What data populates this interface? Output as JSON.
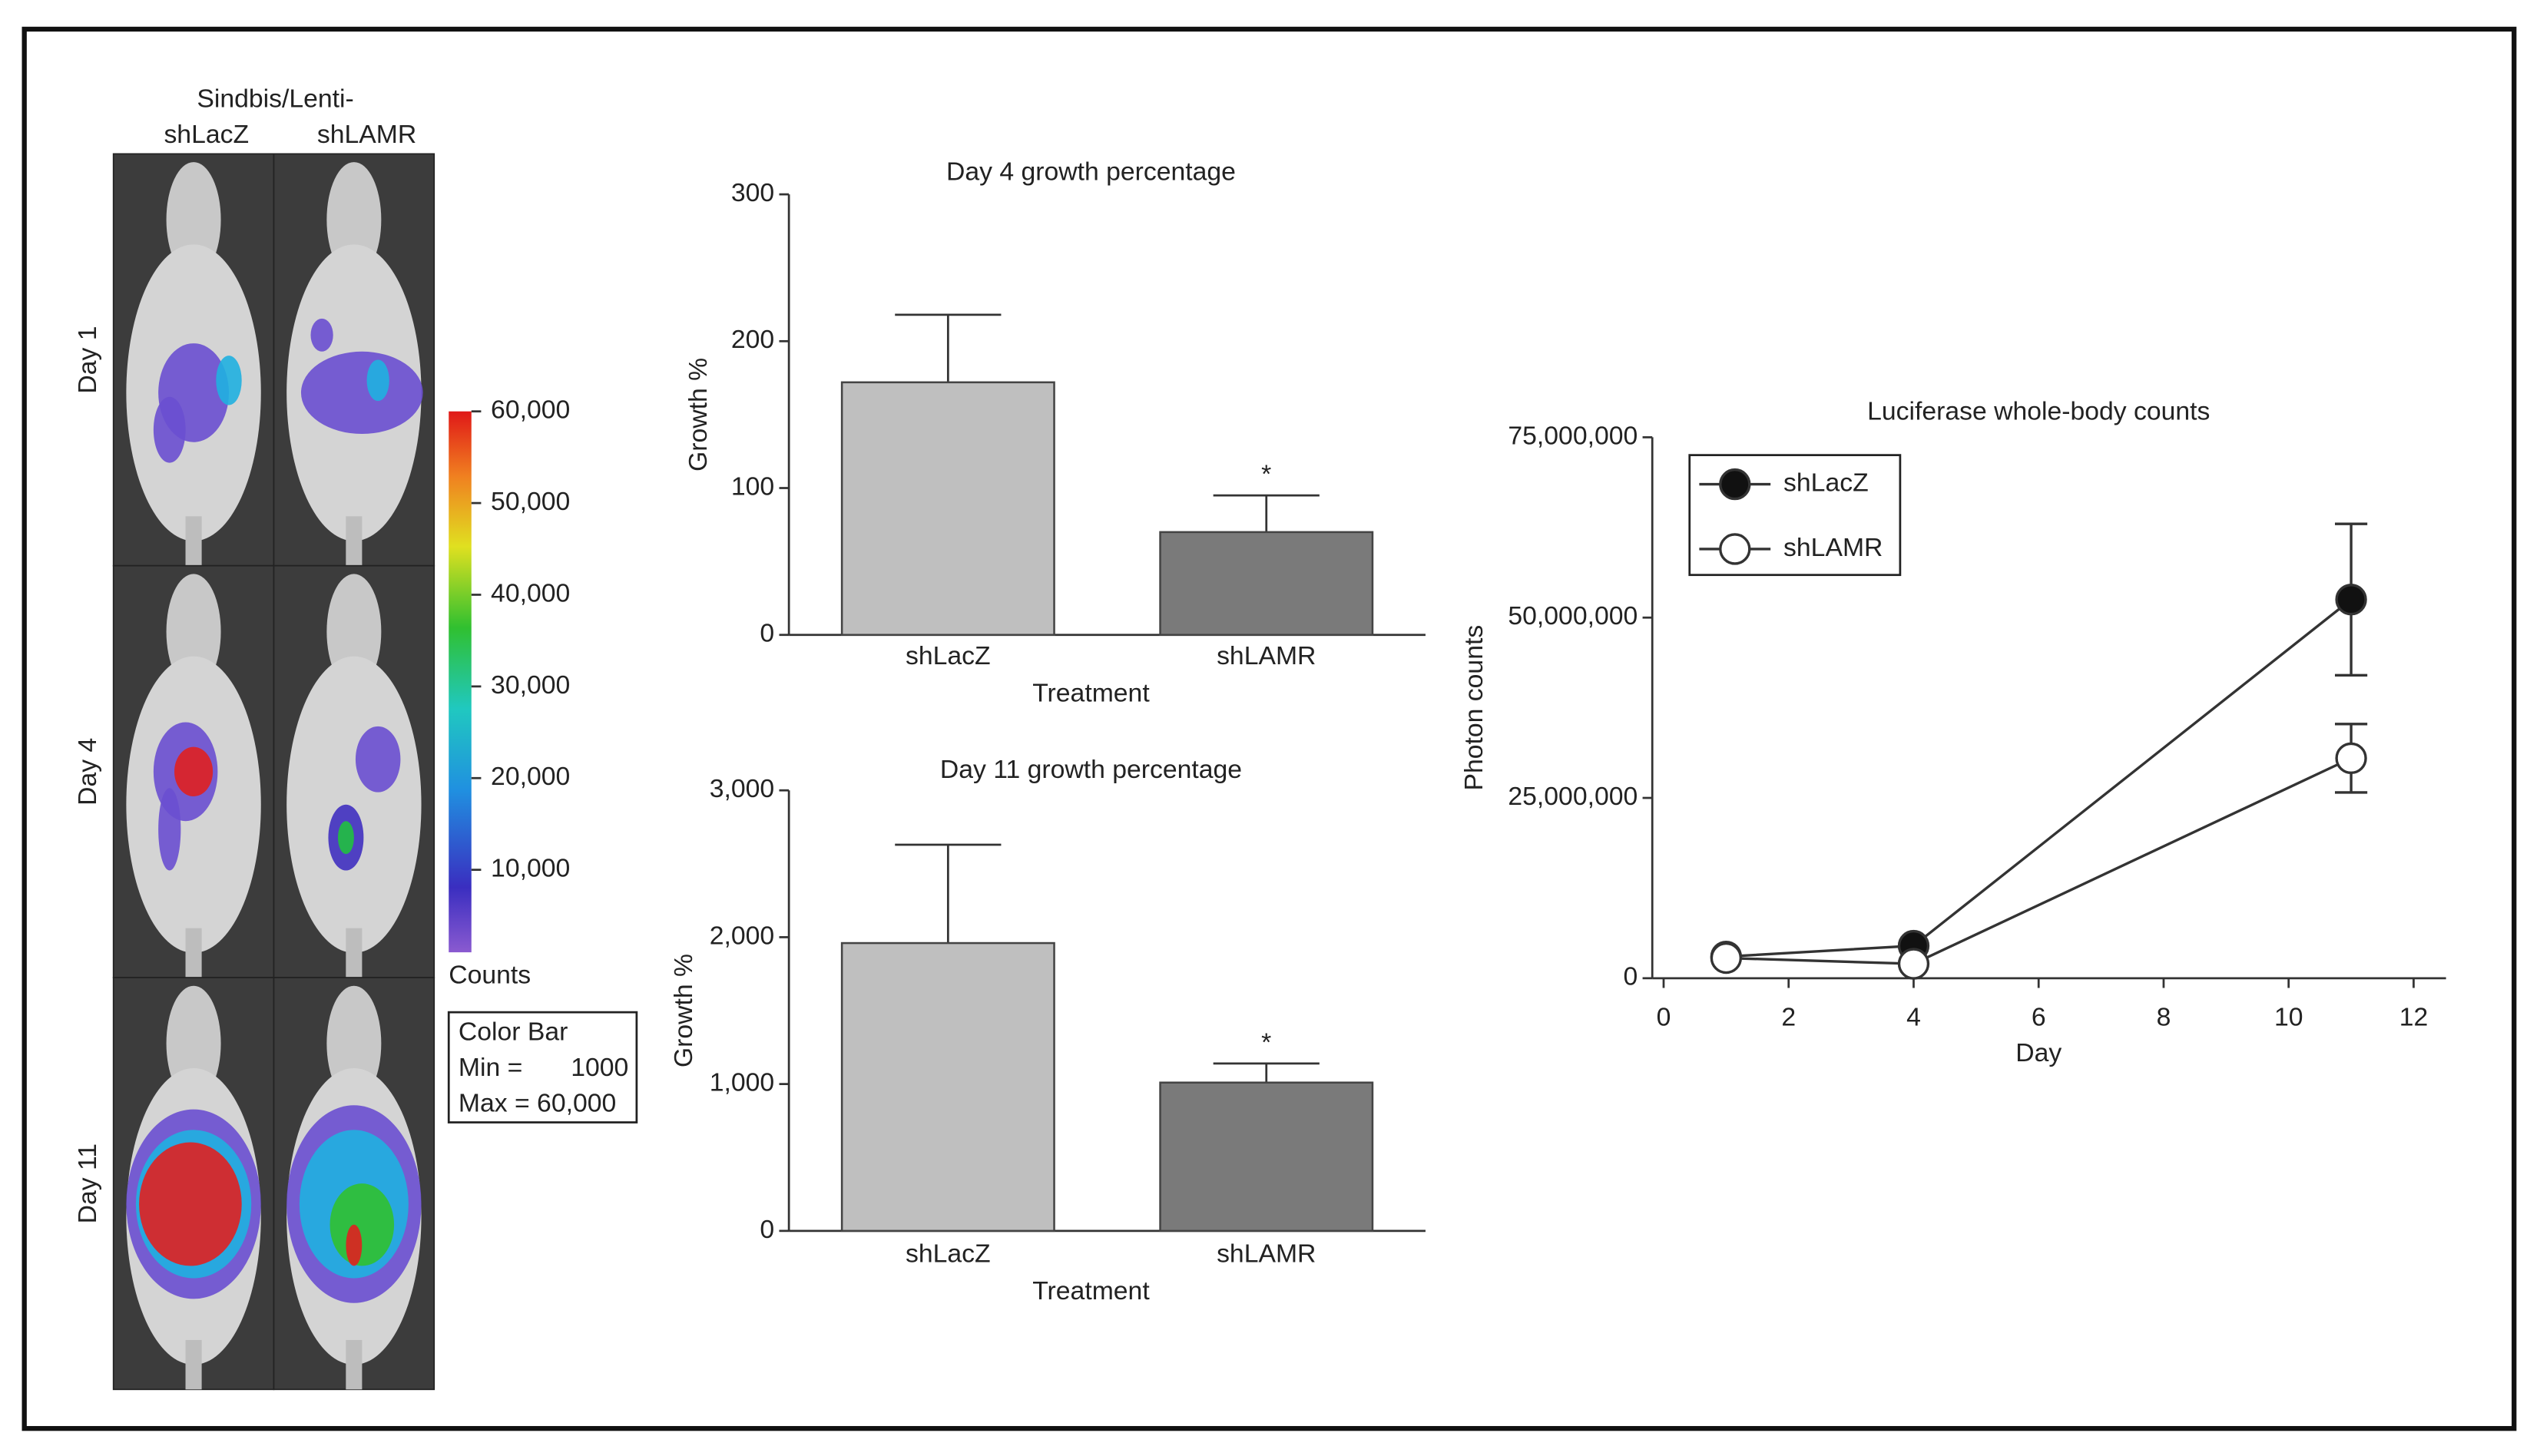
{
  "figure": {
    "image_panel": {
      "header": "Sindbis/Lenti-",
      "columns": [
        "shLacZ",
        "shLAMR"
      ],
      "rows": [
        "Day 1",
        "Day 4",
        "Day 11"
      ]
    },
    "colorbar": {
      "label": "Counts",
      "lim": [
        1000,
        60000
      ],
      "ticks": [
        {
          "value": 10000,
          "label": "10,000"
        },
        {
          "value": 20000,
          "label": "20,000"
        },
        {
          "value": 30000,
          "label": "30,000"
        },
        {
          "value": 40000,
          "label": "40,000"
        },
        {
          "value": 50000,
          "label": "50,000"
        },
        {
          "value": 60000,
          "label": "60,000"
        }
      ],
      "box": {
        "title": "Color Bar",
        "min_label": "Min =",
        "min": 1000,
        "max_label": "Max = 60,000"
      }
    }
  },
  "chart_data": [
    {
      "type": "bar",
      "title": "Day 4 growth percentage",
      "x_label": "Treatment",
      "y_label": "Growth %",
      "categories": [
        "shLacZ",
        "shLAMR"
      ],
      "values": [
        172,
        70
      ],
      "errors": [
        46,
        25
      ],
      "colors": [
        "#bfbfbf",
        "#7a7a7a"
      ],
      "ylim": [
        0,
        300
      ],
      "yticks": [
        0,
        100,
        200,
        300
      ],
      "annotations": [
        {
          "text": "*",
          "category": 1
        }
      ]
    },
    {
      "type": "bar",
      "title": "Day 11 growth percentage",
      "x_label": "Treatment",
      "y_label": "Growth %",
      "categories": [
        "shLacZ",
        "shLAMR"
      ],
      "values": [
        1960,
        1010
      ],
      "errors": [
        670,
        130
      ],
      "colors": [
        "#bfbfbf",
        "#7a7a7a"
      ],
      "ylim": [
        0,
        3000
      ],
      "yticks": [
        0,
        {
          "value": 1000,
          "label": "1,000"
        },
        {
          "value": 2000,
          "label": "2,000"
        },
        {
          "value": 3000,
          "label": "3,000"
        }
      ],
      "annotations": [
        {
          "text": "*",
          "category": 1
        }
      ]
    },
    {
      "type": "line",
      "title": "Luciferase whole-body counts",
      "x_label": "Day",
      "y_label": "Photon counts",
      "x": [
        1,
        4,
        11
      ],
      "series": [
        {
          "name": "shLacZ",
          "color": "#333333",
          "marker_fill": "#111111",
          "values": [
            3000000,
            4500000,
            52500000
          ],
          "errors": [
            null,
            null,
            10500000
          ]
        },
        {
          "name": "shLAMR",
          "color": "#333333",
          "marker_fill": "#ffffff",
          "values": [
            2800000,
            2000000,
            30500000
          ],
          "errors": [
            null,
            null,
            4750000
          ]
        }
      ],
      "xlim": [
        0,
        12
      ],
      "xticks": [
        0,
        2,
        4,
        6,
        8,
        10,
        12
      ],
      "ylim": [
        0,
        75000000
      ],
      "yticks": [
        0,
        {
          "value": 25000000,
          "label": "25,000,000"
        },
        {
          "value": 50000000,
          "label": "50,000,000"
        },
        {
          "value": 75000000,
          "label": "75,000,000"
        }
      ],
      "legend": "upper left"
    }
  ]
}
